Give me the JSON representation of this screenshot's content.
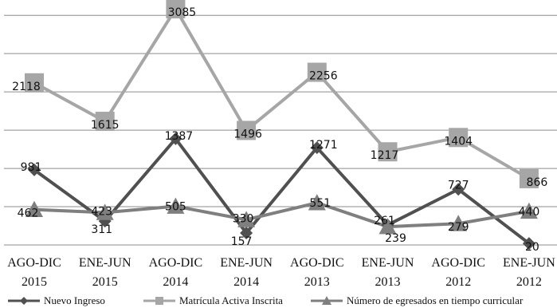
{
  "chart_data": {
    "type": "line",
    "categories": [
      [
        "AGO-DIC",
        "2015"
      ],
      [
        "ENE-JUN",
        "2015"
      ],
      [
        "AGO-DIC",
        "2014"
      ],
      [
        "ENE-JUN",
        "2014"
      ],
      [
        "AGO-DIC",
        "2013"
      ],
      [
        "ENE-JUN",
        "2013"
      ],
      [
        "AGO-DIC",
        "2012"
      ],
      [
        "ENE-JUN",
        "2012"
      ]
    ],
    "series": [
      {
        "name": "Nuevo Ingreso",
        "values": [
          981,
          311,
          1387,
          157,
          1271,
          261,
          727,
          20
        ],
        "color": "#505050",
        "marker": "diamond"
      },
      {
        "name": "Matrícula Activa Inscrita",
        "values": [
          2118,
          1615,
          3085,
          1496,
          2256,
          1217,
          1404,
          866
        ],
        "color": "#a6a6a6",
        "marker": "square"
      },
      {
        "name": "Número de egresados en tiempo curricular",
        "values": [
          462,
          423,
          505,
          330,
          551,
          239,
          279,
          440
        ],
        "color": "#7f7f7f",
        "marker": "triangle"
      }
    ],
    "ylim": [
      0,
      3200
    ],
    "grid": true,
    "legend": "bottom"
  }
}
